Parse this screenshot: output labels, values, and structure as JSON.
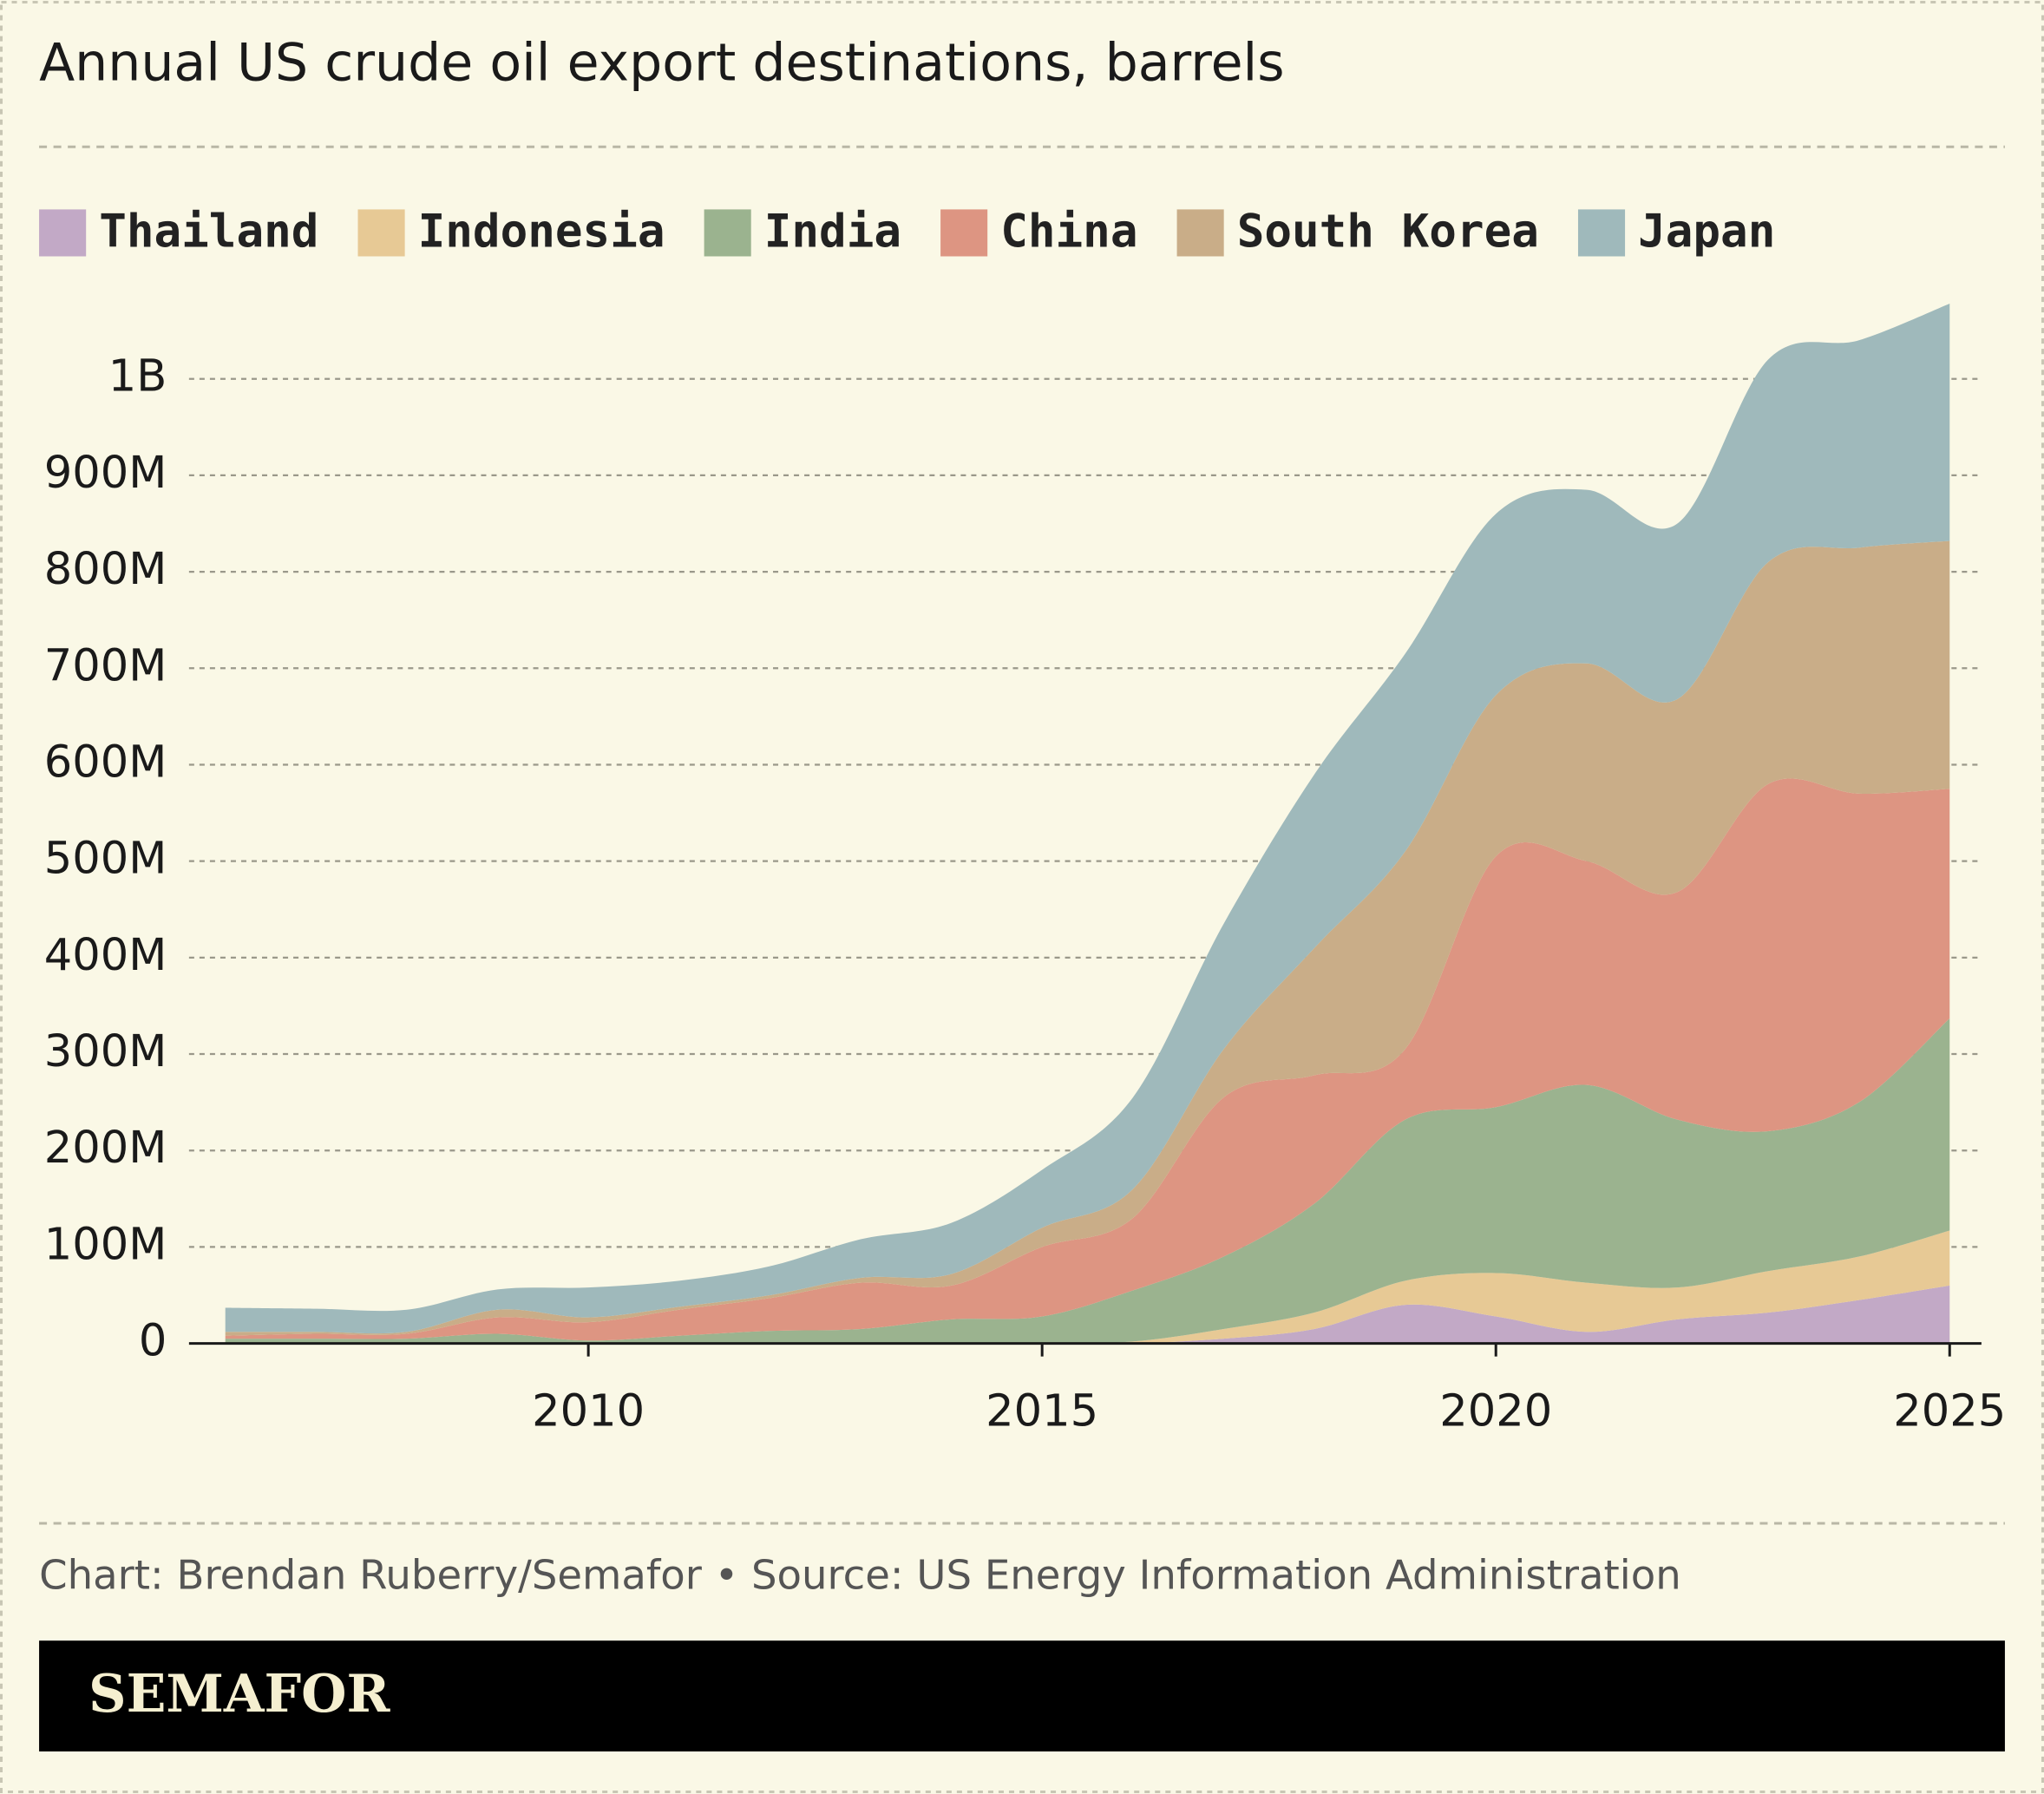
{
  "chart_data": {
    "type": "area",
    "stacked": true,
    "title": "Annual US crude oil export destinations, barrels",
    "source": "Chart: Brendan Ruberry/Semafor • Source: US Energy Information Administration",
    "brand": "SEMAFOR",
    "x": [
      2006,
      2007,
      2008,
      2009,
      2010,
      2011,
      2012,
      2013,
      2014,
      2015,
      2016,
      2017,
      2018,
      2019,
      2020,
      2021,
      2022,
      2023,
      2024,
      2025
    ],
    "xlim": [
      2005.6,
      2025.35
    ],
    "xticks": [
      2010,
      2015,
      2020,
      2025
    ],
    "ylim": [
      0,
      1100
    ],
    "yticks": [
      0,
      {
        "value": 100,
        "label": "100M"
      },
      {
        "value": 200,
        "label": "200M"
      },
      {
        "value": 300,
        "label": "300M"
      },
      {
        "value": 400,
        "label": "400M"
      },
      {
        "value": 500,
        "label": "500M"
      },
      {
        "value": 600,
        "label": "600M"
      },
      {
        "value": 700,
        "label": "700M"
      },
      {
        "value": 800,
        "label": "800M"
      },
      {
        "value": 900,
        "label": "900M"
      },
      {
        "value": 1000,
        "label": "1B"
      }
    ],
    "grid": true,
    "series": [
      {
        "name": "Thailand",
        "color": "#c2a9c6",
        "values": [
          0,
          0,
          0,
          0,
          0,
          0,
          0,
          0,
          0,
          0,
          0,
          5,
          15,
          40,
          28,
          12,
          25,
          32,
          45,
          60
        ]
      },
      {
        "name": "Indonesia",
        "color": "#e7c995",
        "values": [
          0,
          0,
          0,
          0,
          0,
          0,
          0,
          0,
          0,
          0,
          2,
          10,
          17,
          25,
          45,
          51,
          33,
          43,
          45,
          57
        ]
      },
      {
        "name": "India",
        "color": "#9bb38f",
        "values": [
          5,
          5,
          5,
          10,
          3,
          8,
          13,
          15,
          25,
          28,
          53,
          75,
          113,
          167,
          172,
          205,
          174,
          145,
          160,
          220
        ]
      },
      {
        "name": "China",
        "color": "#dd9582",
        "values": [
          3,
          5,
          5,
          17,
          19,
          27,
          34,
          48,
          35,
          72,
          75,
          165,
          133,
          73,
          260,
          232,
          236,
          360,
          320,
          238
        ]
      },
      {
        "name": "South Korea",
        "color": "#c9ad88",
        "values": [
          4,
          2,
          2,
          8,
          5,
          3,
          3,
          5,
          12,
          20,
          30,
          50,
          132,
          205,
          167,
          205,
          200,
          230,
          255,
          257
        ]
      },
      {
        "name": "Japan",
        "color": "#9fb9bb",
        "values": [
          25,
          24,
          23,
          21,
          31,
          27,
          30,
          40,
          53,
          60,
          95,
          130,
          180,
          205,
          188,
          180,
          182,
          210,
          215,
          246
        ]
      }
    ]
  }
}
